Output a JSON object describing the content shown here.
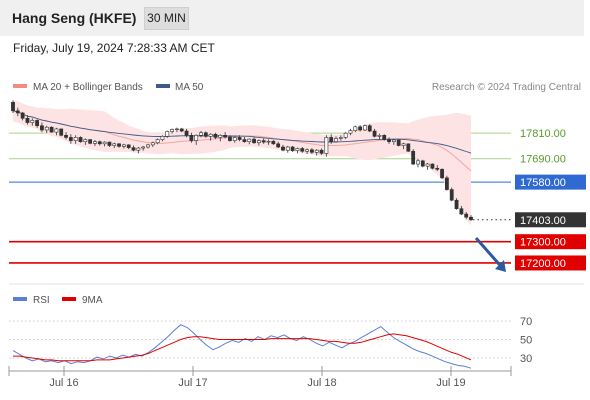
{
  "header": {
    "title": "Hang Seng (HKFE)",
    "timeframe": "30 MIN"
  },
  "datetime": "Friday, July 19, 2024 7:28:33 AM CET",
  "legend": {
    "bb": "MA 20 + Bollinger Bands",
    "ma50": "MA 50",
    "rsi": "RSI",
    "ma9": "9MA"
  },
  "copyright": "Research © 2024 Trading Central",
  "colors": {
    "resistance": "#a9d18e",
    "pivot": "#2e6ad1",
    "support": "#e00000",
    "price": "#333333",
    "candle": "#333333",
    "bb_fill": "#fde3e3",
    "ma20": "#f2a8a0",
    "ma50": "#3e5a8c",
    "rsi": "#5b7fd6",
    "rsi_ma": "#e00000",
    "arrow": "#2b5aa0"
  },
  "chart_data": [
    {
      "type": "candlestick",
      "x_ticks": [
        "Jul 16",
        "Jul 17",
        "Jul 18",
        "Jul 19"
      ],
      "ylim": [
        17120,
        17980
      ],
      "levels": [
        {
          "value": 17810.0,
          "label": "17810.00",
          "kind": "resistance"
        },
        {
          "value": 17690.0,
          "label": "17690.00",
          "kind": "resistance"
        },
        {
          "value": 17580.0,
          "label": "17580.00",
          "kind": "pivot"
        },
        {
          "value": 17403.0,
          "label": "17403.00",
          "kind": "price"
        },
        {
          "value": 17300.0,
          "label": "17300.00",
          "kind": "support"
        },
        {
          "value": 17200.0,
          "label": "17200.00",
          "kind": "support"
        }
      ],
      "series": [
        {
          "name": "MA 20 + Bollinger Bands"
        },
        {
          "name": "MA 50"
        }
      ],
      "candles": [
        [
          17955,
          17965,
          17905,
          17915
        ],
        [
          17915,
          17930,
          17890,
          17905
        ],
        [
          17905,
          17910,
          17870,
          17880
        ],
        [
          17880,
          17895,
          17850,
          17860
        ],
        [
          17860,
          17880,
          17845,
          17870
        ],
        [
          17870,
          17875,
          17835,
          17845
        ],
        [
          17845,
          17860,
          17815,
          17825
        ],
        [
          17825,
          17845,
          17810,
          17838
        ],
        [
          17838,
          17842,
          17812,
          17815
        ],
        [
          17815,
          17835,
          17800,
          17830
        ],
        [
          17830,
          17832,
          17795,
          17800
        ],
        [
          17800,
          17815,
          17780,
          17790
        ],
        [
          17790,
          17805,
          17760,
          17775
        ],
        [
          17775,
          17800,
          17760,
          17790
        ],
        [
          17790,
          17795,
          17765,
          17770
        ],
        [
          17770,
          17785,
          17755,
          17780
        ],
        [
          17780,
          17782,
          17758,
          17762
        ],
        [
          17762,
          17778,
          17750,
          17770
        ],
        [
          17770,
          17775,
          17752,
          17760
        ],
        [
          17760,
          17772,
          17748,
          17768
        ],
        [
          17768,
          17770,
          17745,
          17752
        ],
        [
          17752,
          17765,
          17740,
          17760
        ],
        [
          17760,
          17763,
          17742,
          17748
        ],
        [
          17748,
          17760,
          17738,
          17755
        ],
        [
          17755,
          17758,
          17735,
          17742
        ],
        [
          17742,
          17752,
          17725,
          17730
        ],
        [
          17730,
          17745,
          17715,
          17740
        ],
        [
          17740,
          17750,
          17728,
          17745
        ],
        [
          17745,
          17760,
          17738,
          17755
        ],
        [
          17755,
          17770,
          17745,
          17765
        ],
        [
          17765,
          17785,
          17758,
          17780
        ],
        [
          17780,
          17800,
          17772,
          17795
        ],
        [
          17795,
          17822,
          17788,
          17818
        ],
        [
          17818,
          17832,
          17808,
          17828
        ],
        [
          17828,
          17836,
          17815,
          17830
        ],
        [
          17830,
          17835,
          17815,
          17820
        ],
        [
          17820,
          17830,
          17790,
          17800
        ],
        [
          17800,
          17812,
          17765,
          17775
        ],
        [
          17775,
          17805,
          17755,
          17800
        ],
        [
          17800,
          17820,
          17790,
          17812
        ],
        [
          17812,
          17818,
          17788,
          17795
        ],
        [
          17795,
          17810,
          17775,
          17805
        ],
        [
          17805,
          17812,
          17782,
          17790
        ],
        [
          17790,
          17805,
          17772,
          17800
        ],
        [
          17800,
          17815,
          17785,
          17792
        ],
        [
          17792,
          17800,
          17770,
          17775
        ],
        [
          17775,
          17795,
          17765,
          17790
        ],
        [
          17790,
          17800,
          17772,
          17780
        ],
        [
          17780,
          17792,
          17765,
          17770
        ],
        [
          17770,
          17785,
          17758,
          17782
        ],
        [
          17782,
          17790,
          17760,
          17765
        ],
        [
          17765,
          17780,
          17752,
          17775
        ],
        [
          17775,
          17785,
          17760,
          17768
        ],
        [
          17768,
          17780,
          17755,
          17772
        ],
        [
          17772,
          17778,
          17755,
          17760
        ],
        [
          17760,
          17770,
          17740,
          17745
        ],
        [
          17745,
          17755,
          17725,
          17730
        ],
        [
          17730,
          17750,
          17718,
          17745
        ],
        [
          17745,
          17750,
          17722,
          17728
        ],
        [
          17728,
          17742,
          17715,
          17738
        ],
        [
          17738,
          17745,
          17718,
          17725
        ],
        [
          17725,
          17738,
          17712,
          17732
        ],
        [
          17732,
          17740,
          17712,
          17720
        ],
        [
          17720,
          17735,
          17705,
          17730
        ],
        [
          17730,
          17738,
          17708,
          17715
        ],
        [
          17715,
          17800,
          17700,
          17790
        ],
        [
          17790,
          17805,
          17760,
          17770
        ],
        [
          17770,
          17795,
          17765,
          17785
        ],
        [
          17785,
          17800,
          17775,
          17790
        ],
        [
          17790,
          17815,
          17782,
          17810
        ],
        [
          17810,
          17830,
          17800,
          17822
        ],
        [
          17822,
          17845,
          17815,
          17840
        ],
        [
          17840,
          17848,
          17818,
          17825
        ],
        [
          17825,
          17850,
          17820,
          17845
        ],
        [
          17845,
          17852,
          17815,
          17820
        ],
        [
          17820,
          17830,
          17790,
          17795
        ],
        [
          17795,
          17808,
          17780,
          17800
        ],
        [
          17800,
          17805,
          17775,
          17780
        ],
        [
          17780,
          17790,
          17760,
          17770
        ],
        [
          17770,
          17782,
          17755,
          17778
        ],
        [
          17778,
          17780,
          17748,
          17752
        ],
        [
          17752,
          17765,
          17735,
          17760
        ],
        [
          17760,
          17762,
          17722,
          17725
        ],
        [
          17725,
          17735,
          17660,
          17665
        ],
        [
          17665,
          17690,
          17650,
          17680
        ],
        [
          17680,
          17685,
          17650,
          17655
        ],
        [
          17655,
          17670,
          17638,
          17665
        ],
        [
          17665,
          17668,
          17640,
          17645
        ],
        [
          17645,
          17660,
          17632,
          17640
        ],
        [
          17640,
          17645,
          17595,
          17600
        ],
        [
          17600,
          17610,
          17540,
          17545
        ],
        [
          17545,
          17555,
          17490,
          17495
        ],
        [
          17495,
          17505,
          17450,
          17455
        ],
        [
          17455,
          17468,
          17425,
          17430
        ],
        [
          17430,
          17440,
          17405,
          17415
        ],
        [
          17415,
          17425,
          17398,
          17403
        ]
      ]
    },
    {
      "type": "line",
      "x_ticks": [
        "Jul 16",
        "Jul 17",
        "Jul 18",
        "Jul 19"
      ],
      "yticks": [
        70,
        50,
        30
      ],
      "ylim": [
        10,
        80
      ],
      "series": [
        {
          "name": "RSI",
          "values": [
            38,
            34,
            30,
            27,
            29,
            26,
            27,
            25,
            27,
            24,
            26,
            25,
            27,
            31,
            29,
            32,
            30,
            33,
            31,
            34,
            32,
            36,
            41,
            47,
            53,
            60,
            66,
            63,
            57,
            50,
            44,
            39,
            42,
            46,
            49,
            47,
            51,
            48,
            53,
            50,
            54,
            52,
            55,
            51,
            49,
            53,
            50,
            46,
            43,
            47,
            44,
            41,
            45,
            48,
            52,
            56,
            60,
            64,
            58,
            52,
            48,
            44,
            40,
            37,
            35,
            32,
            29,
            26,
            24,
            22,
            21,
            19
          ]
        },
        {
          "name": "9MA",
          "values": [
            32,
            32,
            31,
            30,
            29,
            28,
            28,
            27,
            27,
            27,
            27,
            27,
            27,
            28,
            28,
            28,
            29,
            30,
            31,
            32,
            33,
            35,
            38,
            41,
            44,
            47,
            50,
            52,
            53,
            53,
            52,
            51,
            50,
            50,
            50,
            50,
            50,
            50,
            50,
            50,
            51,
            51,
            51,
            51,
            51,
            51,
            51,
            50,
            49,
            48,
            48,
            47,
            46,
            46,
            47,
            49,
            51,
            53,
            55,
            56,
            55,
            54,
            52,
            50,
            48,
            45,
            42,
            39,
            36,
            34,
            31,
            28
          ]
        }
      ]
    }
  ]
}
